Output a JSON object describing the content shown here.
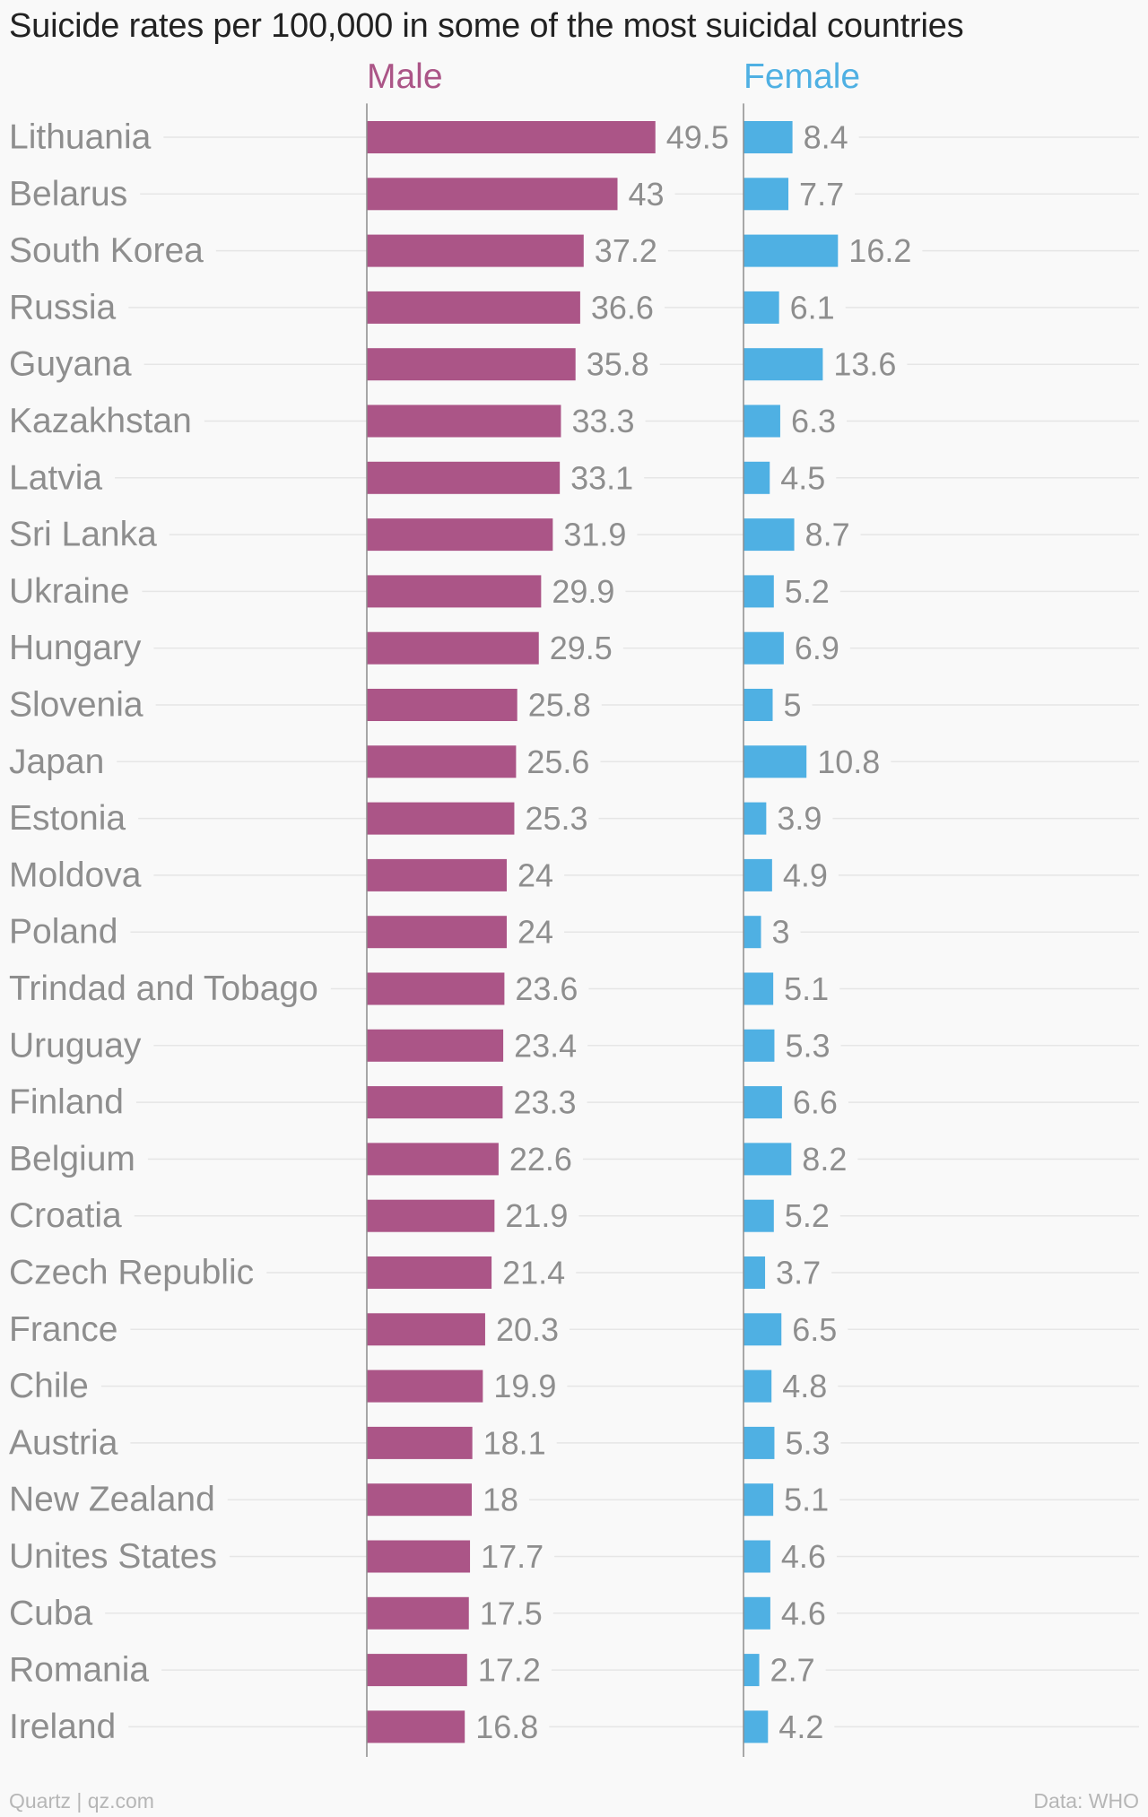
{
  "title": "Suicide rates per 100,000 in some of the most suicidal countries",
  "footer": {
    "credit": "Quartz | qz.com",
    "source": "Data: WHO"
  },
  "colors": {
    "male": "#ab5587",
    "female": "#4fb0e3",
    "label_text": "#8e8e8e",
    "gridline": "#e6e6e6",
    "axis": "#8c8c8c"
  },
  "chart_data": {
    "type": "bar",
    "orientation": "horizontal",
    "title": "Suicide rates per 100,000 in some of the most suicidal countries",
    "grid": true,
    "legend": "none",
    "categories": [
      "Lithuania",
      "Belarus",
      "South Korea",
      "Russia",
      "Guyana",
      "Kazakhstan",
      "Latvia",
      "Sri Lanka",
      "Ukraine",
      "Hungary",
      "Slovenia",
      "Japan",
      "Estonia",
      "Moldova",
      "Poland",
      "Trindad and Tobago",
      "Uruguay",
      "Finland",
      "Belgium",
      "Croatia",
      "Czech Republic",
      "France",
      "Chile",
      "Austria",
      "New Zealand",
      "Unites States",
      "Cuba",
      "Romania",
      "Ireland"
    ],
    "series": [
      {
        "name": "Male",
        "color": "#ab5587",
        "values": [
          49.5,
          43,
          37.2,
          36.6,
          35.8,
          33.3,
          33.1,
          31.9,
          29.9,
          29.5,
          25.8,
          25.6,
          25.3,
          24,
          24,
          23.6,
          23.4,
          23.3,
          22.6,
          21.9,
          21.4,
          20.3,
          19.9,
          18.1,
          18,
          17.7,
          17.5,
          17.2,
          16.8
        ]
      },
      {
        "name": "Female",
        "color": "#4fb0e3",
        "values": [
          8.4,
          7.7,
          16.2,
          6.1,
          13.6,
          6.3,
          4.5,
          8.7,
          5.2,
          6.9,
          5,
          10.8,
          3.9,
          4.9,
          3,
          5.1,
          5.3,
          6.6,
          8.2,
          5.2,
          3.7,
          6.5,
          4.8,
          5.3,
          5.1,
          4.6,
          4.6,
          2.7,
          4.2
        ]
      }
    ]
  }
}
